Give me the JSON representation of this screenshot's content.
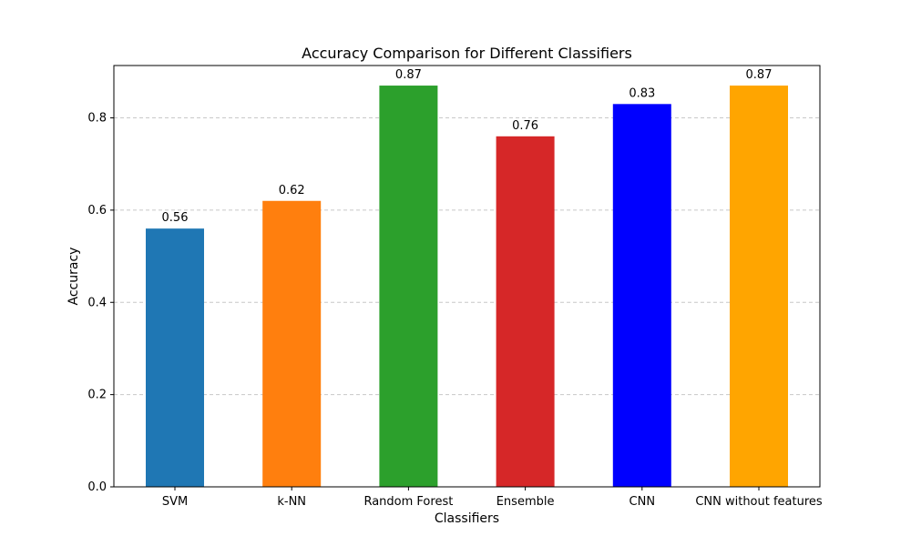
{
  "chart_data": {
    "type": "bar",
    "title": "Accuracy Comparison for Different Classifiers",
    "xlabel": "Classifiers",
    "ylabel": "Accuracy",
    "categories": [
      "SVM",
      "k-NN",
      "Random Forest",
      "Ensemble",
      "CNN",
      "CNN without features"
    ],
    "values": [
      0.56,
      0.62,
      0.87,
      0.76,
      0.83,
      0.87
    ],
    "value_labels": [
      "0.56",
      "0.62",
      "0.87",
      "0.76",
      "0.83",
      "0.87"
    ],
    "colors": [
      "#1f77b4",
      "#ff7f0e",
      "#2ca02c",
      "#d62728",
      "#0000ff",
      "#ffa500"
    ],
    "ylim": [
      0,
      0.9135
    ],
    "yticks": [
      0.0,
      0.2,
      0.4,
      0.6,
      0.8
    ],
    "ytick_labels": [
      "0.0",
      "0.2",
      "0.4",
      "0.6",
      "0.8"
    ],
    "grid": {
      "axis": "y",
      "style": "dashed",
      "color": "#c8c8c8"
    },
    "legend": false
  }
}
